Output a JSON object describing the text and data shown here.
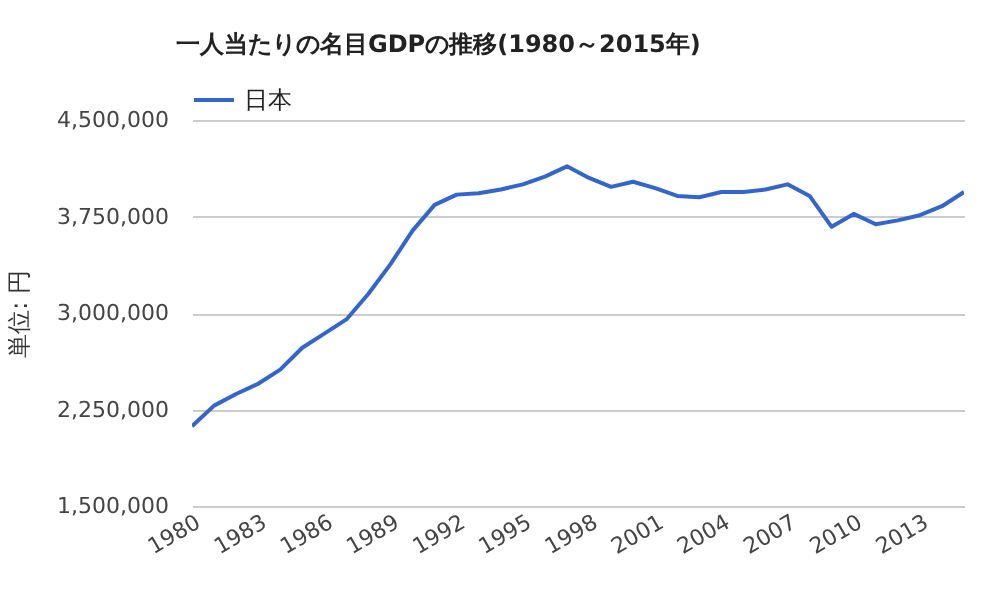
{
  "chart_data": {
    "type": "line",
    "title": "一人当たりの名目GDPの推移(1980～2015年)",
    "ylabel": "単位: 円",
    "x": [
      1980,
      1981,
      1982,
      1983,
      1984,
      1985,
      1986,
      1987,
      1988,
      1989,
      1990,
      1991,
      1992,
      1993,
      1994,
      1995,
      1996,
      1997,
      1998,
      1999,
      2000,
      2001,
      2002,
      2003,
      2004,
      2005,
      2006,
      2007,
      2008,
      2009,
      2010,
      2011,
      2012,
      2013,
      2014,
      2015
    ],
    "series": [
      {
        "name": "日本",
        "color": "#3366cc",
        "values": [
          2120000,
          2280000,
          2370000,
          2450000,
          2560000,
          2730000,
          2840000,
          2950000,
          3150000,
          3380000,
          3640000,
          3840000,
          3920000,
          3930000,
          3960000,
          4000000,
          4060000,
          4140000,
          4050000,
          3980000,
          4020000,
          3970000,
          3910000,
          3900000,
          3940000,
          3940000,
          3960000,
          4000000,
          3910000,
          3670000,
          3770000,
          3690000,
          3720000,
          3760000,
          3830000,
          3940000
        ]
      }
    ],
    "xlim": [
      1980,
      2015
    ],
    "xticks": [
      1980,
      1983,
      1986,
      1989,
      1992,
      1995,
      1998,
      2001,
      2004,
      2007,
      2010,
      2013
    ],
    "ylim": [
      1500000,
      4500000
    ],
    "yticks": [
      {
        "value": 1500000,
        "label": "1,500,000"
      },
      {
        "value": 2250000,
        "label": "2,250,000"
      },
      {
        "value": 3000000,
        "label": "3,000,000"
      },
      {
        "value": 3750000,
        "label": "3,750,000"
      },
      {
        "value": 4500000,
        "label": "4,500,000"
      }
    ],
    "grid": "y",
    "legend": "top left",
    "marker": "none",
    "line_style": "solid"
  }
}
